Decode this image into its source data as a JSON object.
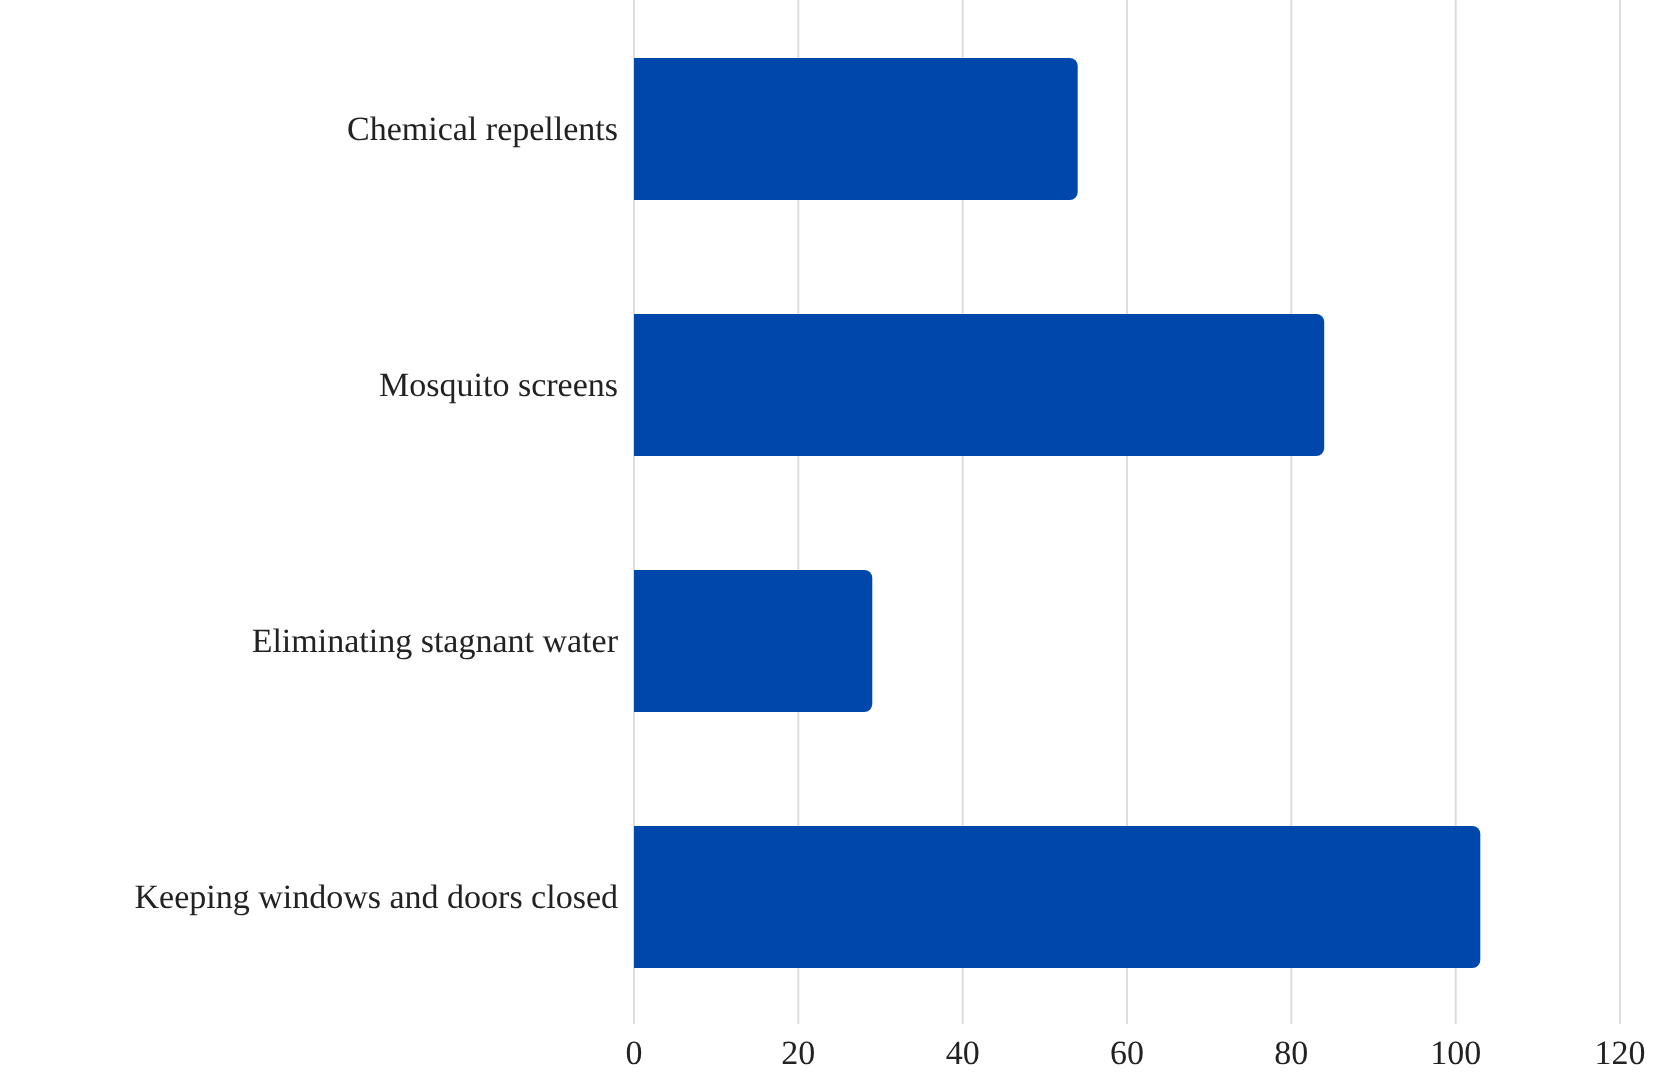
{
  "chart_data": {
    "type": "bar",
    "orientation": "horizontal",
    "categories": [
      "Chemical repellents",
      "Mosquito screens",
      "Eliminating stagnant water",
      "Keeping windows and doors closed"
    ],
    "values": [
      54,
      84,
      29,
      103
    ],
    "color": "#0047ab",
    "xlim": [
      0,
      120
    ],
    "xticks": [
      0,
      20,
      40,
      60,
      80,
      100,
      120
    ],
    "grid": "x"
  }
}
